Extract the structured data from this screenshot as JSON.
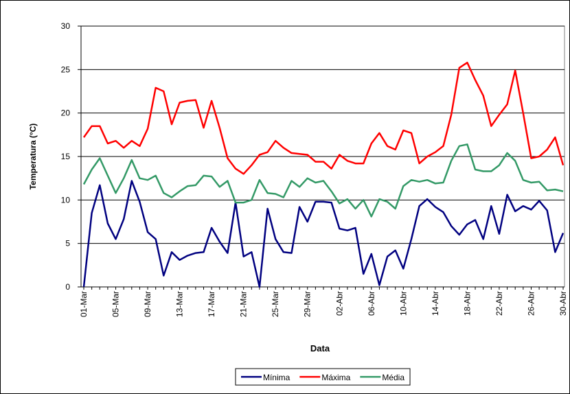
{
  "chart_data": {
    "type": "line",
    "x_label": "Data",
    "y_label": "Temperatura (°C)",
    "categories": [
      "01-Mar",
      null,
      null,
      null,
      "05-Mar",
      null,
      null,
      null,
      "09-Mar",
      null,
      null,
      null,
      "13-Mar",
      null,
      null,
      null,
      "17-Mar",
      null,
      null,
      null,
      "21-Mar",
      null,
      null,
      null,
      "25-Mar",
      null,
      null,
      null,
      "29-Mar",
      null,
      null,
      null,
      "02-Abr",
      null,
      null,
      null,
      "06-Abr",
      null,
      null,
      null,
      "10-Abr",
      null,
      null,
      null,
      "14-Abr",
      null,
      null,
      null,
      "18-Abr",
      null,
      null,
      null,
      "22-Abr",
      null,
      null,
      null,
      "26-Abr",
      null,
      null,
      null,
      "30-Abr"
    ],
    "series": [
      {
        "name": "Mínima",
        "color": "#000080",
        "values": [
          0,
          8.5,
          11.7,
          7.3,
          5.5,
          7.8,
          12.2,
          9.8,
          6.3,
          5.5,
          1.3,
          4.0,
          3.1,
          3.6,
          3.9,
          4.0,
          6.8,
          5.2,
          3.9,
          9.7,
          3.5,
          4.0,
          0,
          9.0,
          5.5,
          4.0,
          3.9,
          9.2,
          7.5,
          9.8,
          9.8,
          9.7,
          6.7,
          6.5,
          6.8,
          1.5,
          3.8,
          0.2,
          3.5,
          4.2,
          2.1,
          5.5,
          9.3,
          10.1,
          9.2,
          8.6,
          7.0,
          6.0,
          7.2,
          7.7,
          5.5,
          9.3,
          6.1,
          10.6,
          8.7,
          9.3,
          8.9,
          9.9,
          8.8,
          4.0,
          6.2
        ]
      },
      {
        "name": "Máxima",
        "color": "#ff0000",
        "values": [
          17.2,
          18.5,
          18.5,
          16.5,
          16.8,
          16.0,
          16.8,
          16.2,
          18.2,
          22.9,
          22.5,
          18.7,
          21.2,
          21.4,
          21.5,
          18.3,
          21.4,
          18.3,
          14.8,
          13.6,
          13.0,
          14.0,
          15.2,
          15.5,
          16.8,
          16.0,
          15.4,
          15.3,
          15.2,
          14.4,
          14.4,
          13.6,
          15.2,
          14.5,
          14.2,
          14.2,
          16.5,
          17.7,
          16.2,
          15.8,
          18.0,
          17.7,
          14.2,
          15.0,
          15.5,
          16.2,
          19.8,
          25.2,
          25.8,
          23.8,
          22.0,
          18.5,
          19.8,
          21.0,
          24.9,
          20.0,
          14.8,
          15.0,
          15.8,
          17.2,
          14.0
        ]
      },
      {
        "name": "Média",
        "color": "#339966",
        "values": [
          11.8,
          13.5,
          14.8,
          12.8,
          10.8,
          12.5,
          14.6,
          12.5,
          12.3,
          12.8,
          10.8,
          10.3,
          11.0,
          11.6,
          11.7,
          12.8,
          12.7,
          11.5,
          12.2,
          9.7,
          9.7,
          10.0,
          12.3,
          10.8,
          10.7,
          10.3,
          12.2,
          11.5,
          12.5,
          12.0,
          12.2,
          11.0,
          9.6,
          10.1,
          9.0,
          10.0,
          8.1,
          10.1,
          9.8,
          9.0,
          11.6,
          12.3,
          12.1,
          12.3,
          11.9,
          12.0,
          14.5,
          16.2,
          16.4,
          13.5,
          13.3,
          13.3,
          14.0,
          15.4,
          14.5,
          12.3,
          12.0,
          12.1,
          11.1,
          11.2,
          11.0
        ]
      }
    ],
    "ylim": [
      0,
      30
    ],
    "yticks": [
      0,
      5,
      10,
      15,
      20,
      25,
      30
    ],
    "grid": true,
    "legend": "bottom"
  }
}
